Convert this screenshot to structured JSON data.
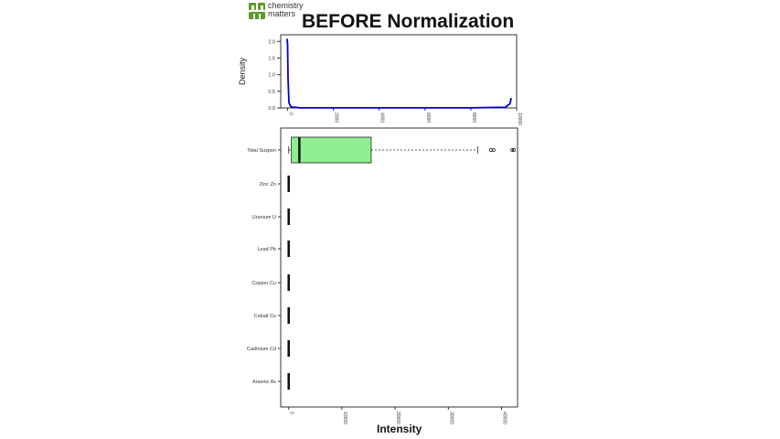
{
  "logo": {
    "line1": "chemistry",
    "line2": "matters",
    "mark_icon": "chemistry-matters-logo-icon",
    "color": "#5a9a2a"
  },
  "title": "BEFORE Normalization",
  "chart_data": [
    {
      "type": "line",
      "title": "",
      "xlabel": "",
      "ylabel": "Density",
      "xlim": [
        -300,
        10000
      ],
      "ylim": [
        0,
        2.2
      ],
      "x_ticks": [
        0,
        2000,
        4000,
        6000,
        8000,
        10000
      ],
      "x_tick_labels": [
        "0",
        "2000",
        "4000",
        "6000",
        "8000",
        "10000"
      ],
      "y_ticks": [
        0,
        0.5,
        1.0,
        1.5,
        2.0
      ],
      "y_tick_labels": [
        "0.0",
        "0.5",
        "1.0",
        "1.5",
        "2.0"
      ],
      "grid": false,
      "series": [
        {
          "color": "#0000cc",
          "x": [
            -20,
            0,
            20,
            60,
            150,
            500,
            2000,
            4000,
            6000,
            8000,
            9500,
            9700,
            9740,
            9760
          ],
          "y": [
            2.08,
            1.9,
            0.9,
            0.15,
            0.03,
            0.005,
            0.002,
            0.002,
            0.002,
            0.002,
            0.02,
            0.12,
            0.22,
            0.3
          ]
        }
      ]
    },
    {
      "type": "box",
      "title": "",
      "xlabel": "Intensity",
      "ylabel": "",
      "xlim": [
        -1500,
        43000
      ],
      "x_ticks": [
        0,
        10000,
        20000,
        30000,
        40000
      ],
      "x_tick_labels": [
        "0",
        "10000",
        "20000",
        "30000",
        "40000"
      ],
      "grid": false,
      "categories": [
        "Total Suspen",
        "Zinc Zn",
        "Uranium U",
        "Lead Pb",
        "Copper Cu",
        "Cobalt Co",
        "Cadmium Cd",
        "Arsenic As"
      ],
      "boxes": [
        {
          "name": "Total Suspen",
          "min": 0,
          "q1": 500,
          "median": 2000,
          "q3": 15500,
          "max": 35500,
          "outliers": [
            38000,
            38500,
            42000,
            42300
          ],
          "fill": "#90ee90"
        },
        {
          "name": "Zinc Zn",
          "min": 0,
          "q1": 0,
          "median": 0,
          "q3": 0,
          "max": 0,
          "outliers": []
        },
        {
          "name": "Uranium U",
          "min": 0,
          "q1": 0,
          "median": 0,
          "q3": 0,
          "max": 0,
          "outliers": []
        },
        {
          "name": "Lead Pb",
          "min": 0,
          "q1": 0,
          "median": 0,
          "q3": 0,
          "max": 0,
          "outliers": []
        },
        {
          "name": "Copper Cu",
          "min": 0,
          "q1": 0,
          "median": 0,
          "q3": 0,
          "max": 0,
          "outliers": []
        },
        {
          "name": "Cobalt Co",
          "min": 0,
          "q1": 0,
          "median": 0,
          "q3": 0,
          "max": 0,
          "outliers": []
        },
        {
          "name": "Cadmium Cd",
          "min": 0,
          "q1": 0,
          "median": 0,
          "q3": 0,
          "max": 0,
          "outliers": []
        },
        {
          "name": "Arsenic As",
          "min": 0,
          "q1": 0,
          "median": 0,
          "q3": 0,
          "max": 0,
          "outliers": []
        }
      ]
    }
  ]
}
